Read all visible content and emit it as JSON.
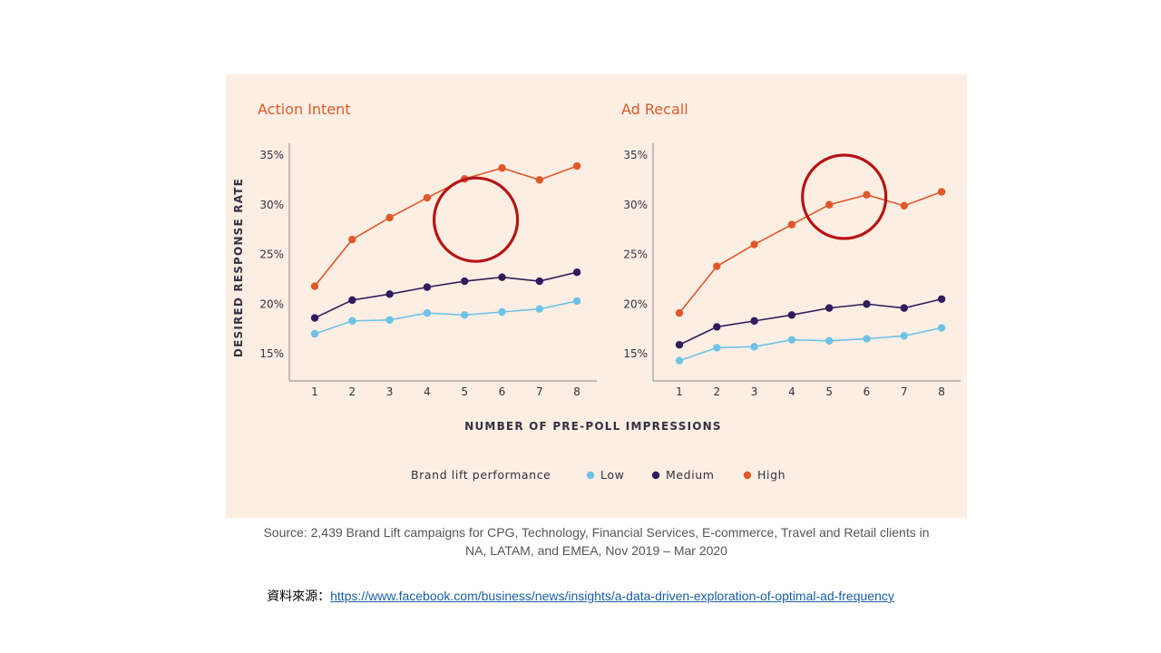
{
  "colors": {
    "panel_bg": "#fdeee3",
    "axis": "#8a8a8a",
    "title": "#de5a2a",
    "label": "#33303f",
    "highlight_circle": "#b51414",
    "low": "#6ec2e6",
    "medium": "#2e1c5c",
    "high": "#e0582a"
  },
  "chart_data": {
    "type": "line",
    "ylabel": "DESIRED RESPONSE RATE",
    "xlabel": "NUMBER OF PRE-POLL IMPRESSIONS",
    "x": [
      1,
      2,
      3,
      4,
      5,
      6,
      7,
      8
    ],
    "y_ticks": [
      "35%",
      "30%",
      "25%",
      "20%",
      "15%"
    ],
    "y_tick_values": [
      35,
      30,
      25,
      20,
      15
    ],
    "ylim": [
      12.5,
      36.5
    ],
    "legend": {
      "title": "Brand lift performance",
      "entries": [
        {
          "key": "low",
          "label": "Low"
        },
        {
          "key": "medium",
          "label": "Medium"
        },
        {
          "key": "high",
          "label": "High"
        }
      ]
    },
    "panels": [
      {
        "title": "Action Intent",
        "highlight_x": 5.3,
        "highlight_y": 28.5,
        "series": [
          {
            "key": "high",
            "name": "High",
            "values": [
              21.8,
              26.5,
              28.7,
              30.7,
              32.6,
              33.7,
              32.5,
              33.9
            ]
          },
          {
            "key": "medium",
            "name": "Medium",
            "values": [
              18.6,
              20.4,
              21.0,
              21.7,
              22.3,
              22.7,
              22.3,
              23.2
            ]
          },
          {
            "key": "low",
            "name": "Low",
            "values": [
              17.0,
              18.3,
              18.4,
              19.1,
              18.9,
              19.2,
              19.5,
              20.3
            ]
          }
        ]
      },
      {
        "title": "Ad Recall",
        "highlight_x": 5.4,
        "highlight_y": 30.8,
        "series": [
          {
            "key": "high",
            "name": "High",
            "values": [
              19.1,
              23.8,
              26.0,
              28.0,
              30.0,
              31.0,
              29.9,
              31.3
            ]
          },
          {
            "key": "medium",
            "name": "Medium",
            "values": [
              15.9,
              17.7,
              18.3,
              18.9,
              19.6,
              20.0,
              19.6,
              20.5
            ]
          },
          {
            "key": "low",
            "name": "Low",
            "values": [
              14.3,
              15.6,
              15.7,
              16.4,
              16.3,
              16.5,
              16.8,
              17.6
            ]
          }
        ]
      }
    ]
  },
  "source": {
    "line1": "Source: 2,439 Brand Lift campaigns for CPG, Technology, Financial Services, E-commerce, Travel and Retail clients in",
    "line2": "NA, LATAM, and EMEA, Nov 2019 – Mar 2020"
  },
  "reference": {
    "label": "資料來源：",
    "url": "https://www.facebook.com/business/news/insights/a-data-driven-exploration-of-optimal-ad-frequency"
  }
}
